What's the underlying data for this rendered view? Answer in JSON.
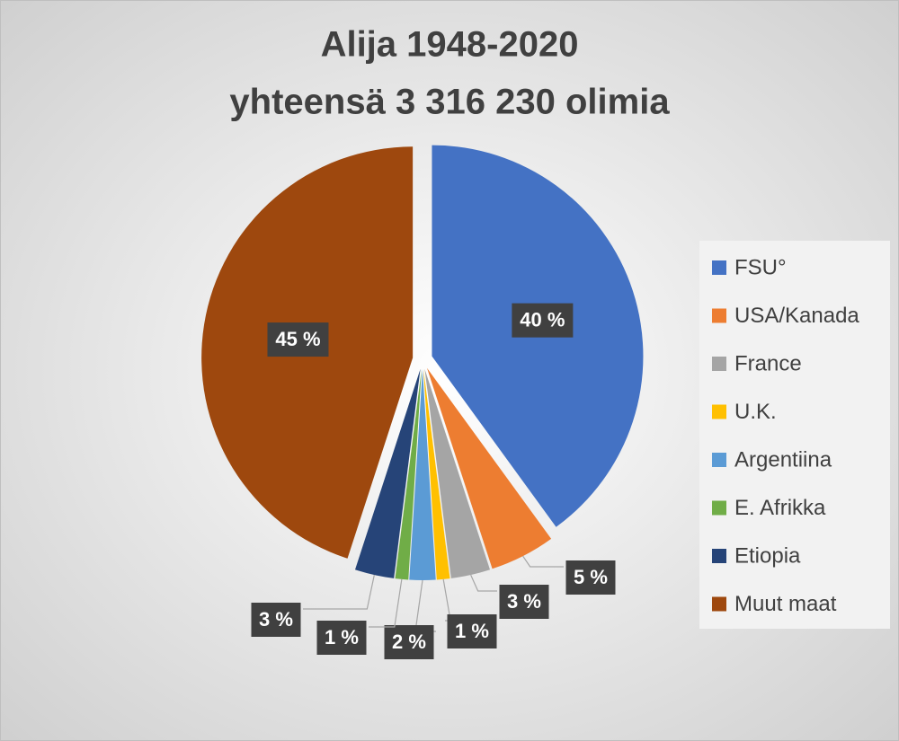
{
  "chart_data": {
    "type": "pie",
    "title": "Alija 1948-2020",
    "subtitle": "yhteensä 3 316 230 olimia",
    "categories": [
      "FSU°",
      "USA/Kanada",
      "France",
      "U.K.",
      "Argentiina",
      "E. Afrikka",
      "Etiopia",
      "Muut maat"
    ],
    "values": [
      40,
      5,
      3,
      1,
      2,
      1,
      3,
      45
    ],
    "value_labels": [
      "40 %",
      "5 %",
      "3 %",
      "1 %",
      "2 %",
      "1 %",
      "3 %",
      "45 %"
    ],
    "colors": [
      "#4472c4",
      "#ed7d31",
      "#a5a5a5",
      "#ffc000",
      "#5b9bd5",
      "#70ad47",
      "#264478",
      "#9e480e"
    ],
    "legend": "right"
  }
}
